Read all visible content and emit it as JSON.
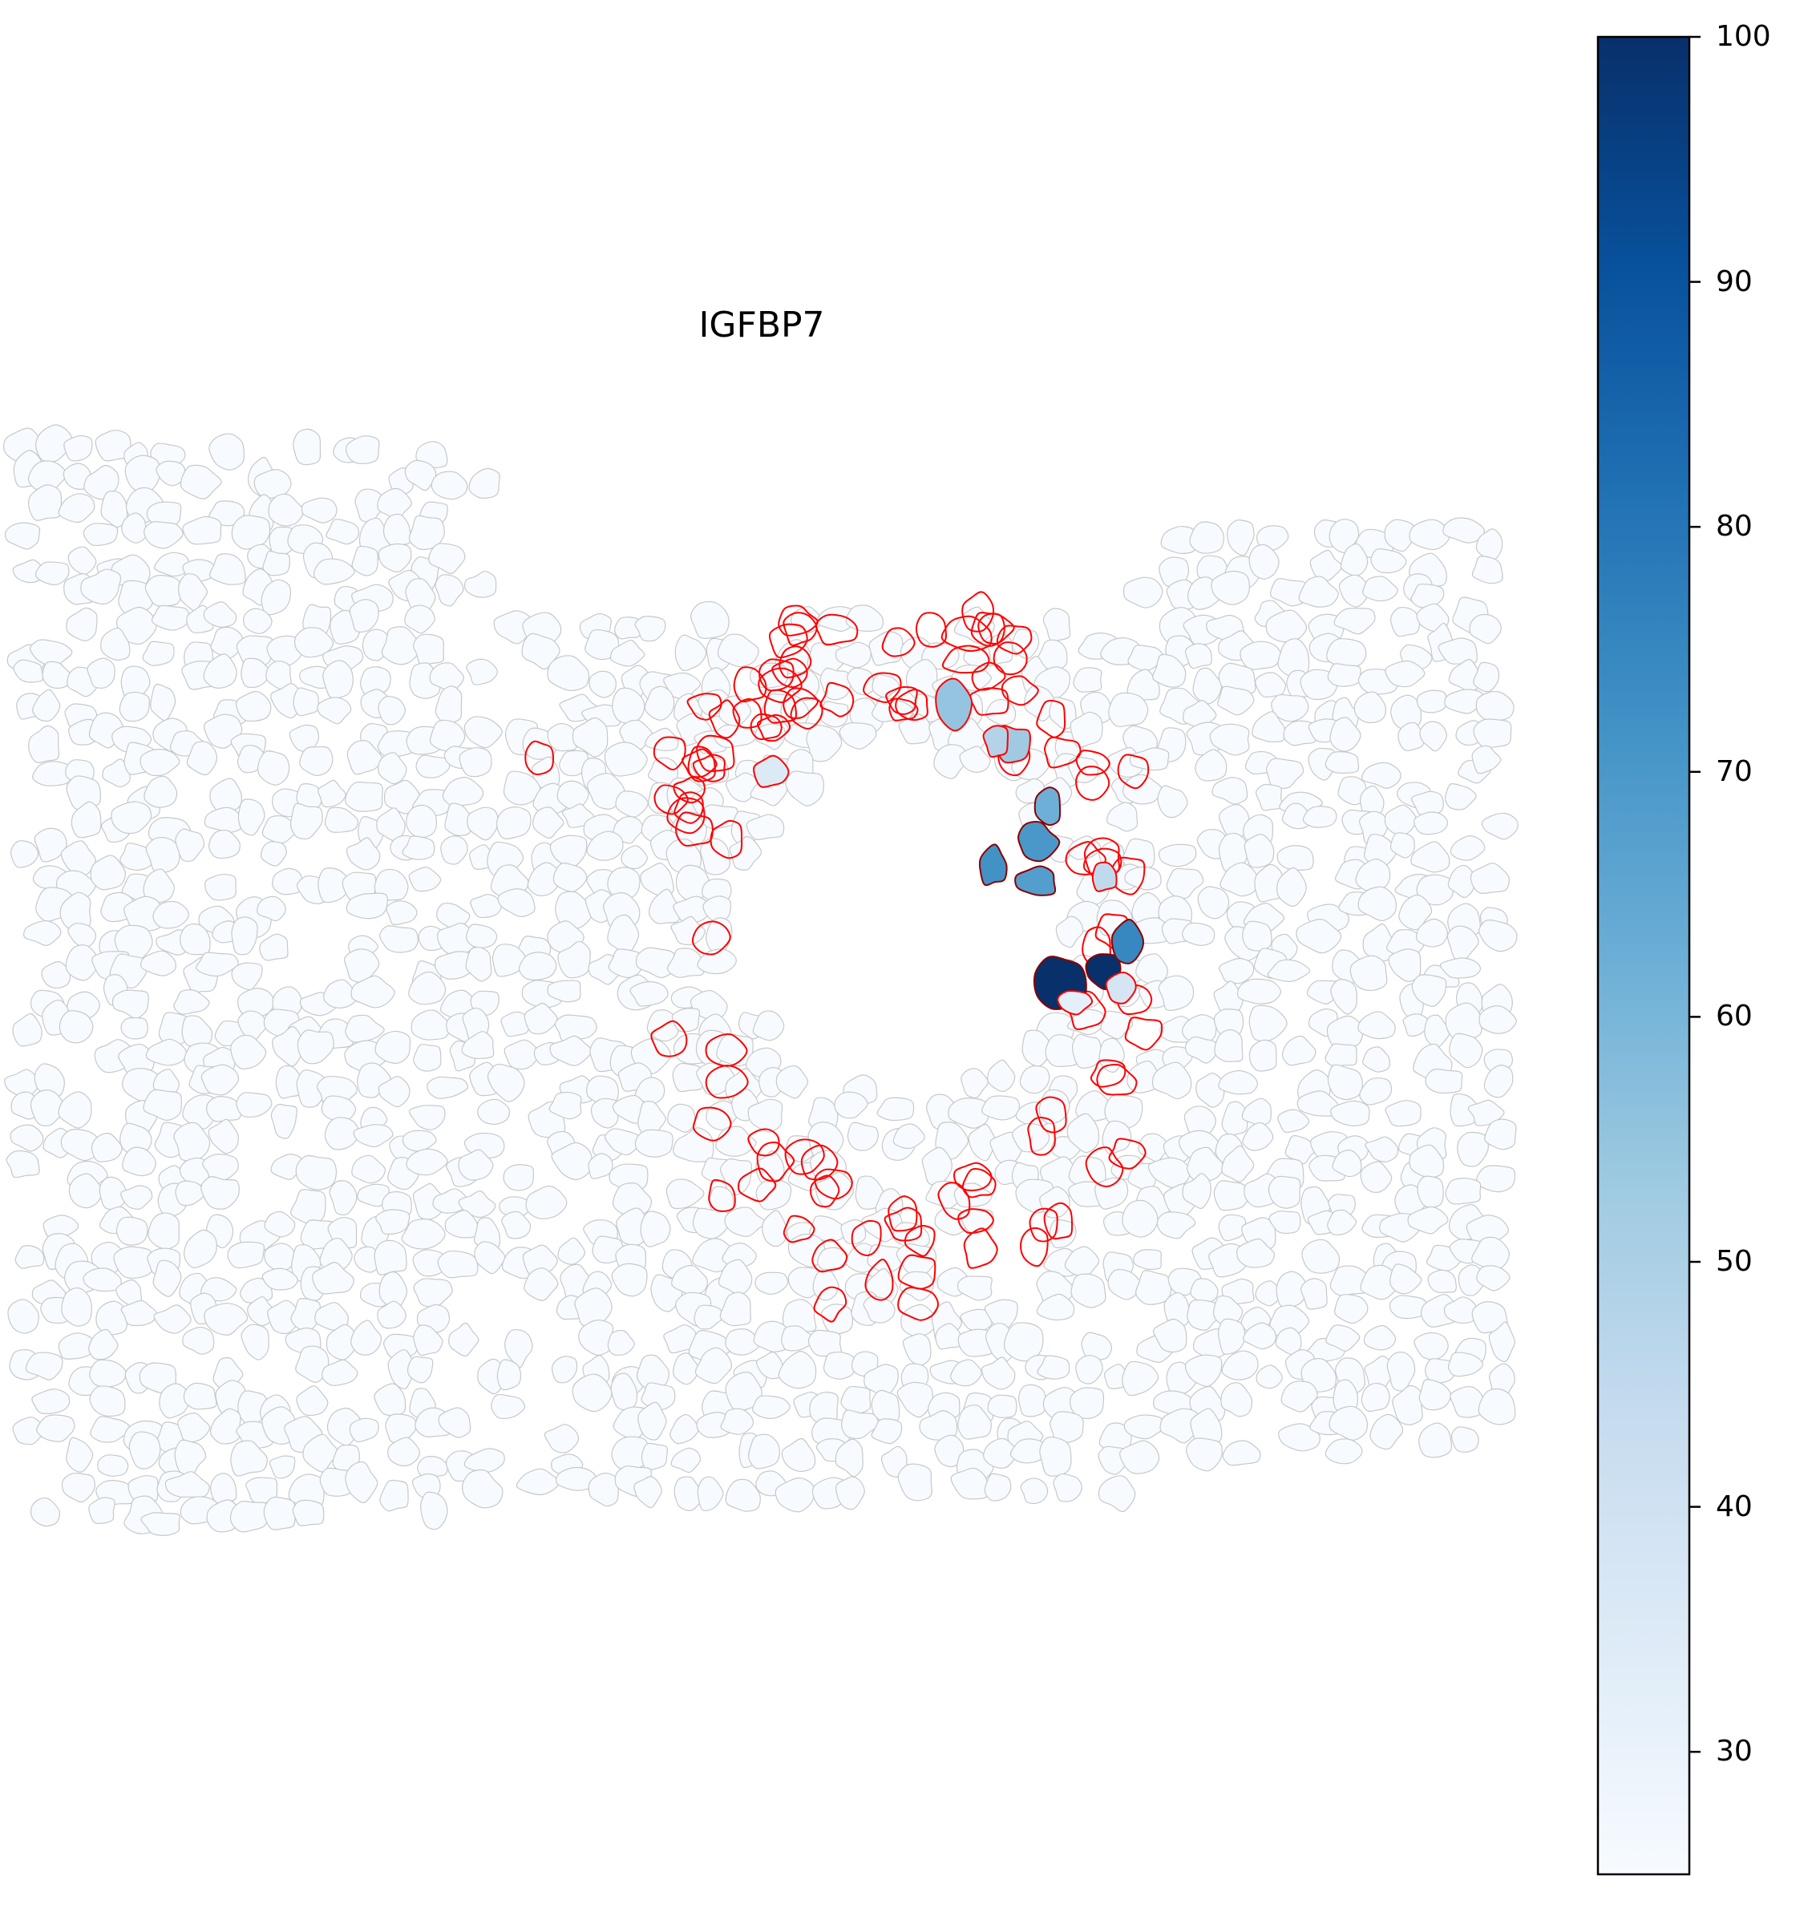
{
  "chart_data": {
    "type": "heatmap",
    "title": "IGFBP7",
    "colormap": "Blues",
    "colorbar": {
      "min": 25,
      "max": 100,
      "ticks": [
        30,
        40,
        50,
        60,
        70,
        80,
        90,
        100
      ],
      "tick_labels": [
        "30",
        "40",
        "50",
        "60",
        "70",
        "80",
        "90",
        "100"
      ]
    },
    "highlight_outline_color": "#ff0000",
    "default_outline_color": "#c8c8c8",
    "cell_values_nonbaseline": [
      100,
      100,
      75,
      72,
      70,
      68,
      62,
      55,
      53,
      48,
      45,
      38,
      35,
      32
    ],
    "baseline_value": 25
  }
}
